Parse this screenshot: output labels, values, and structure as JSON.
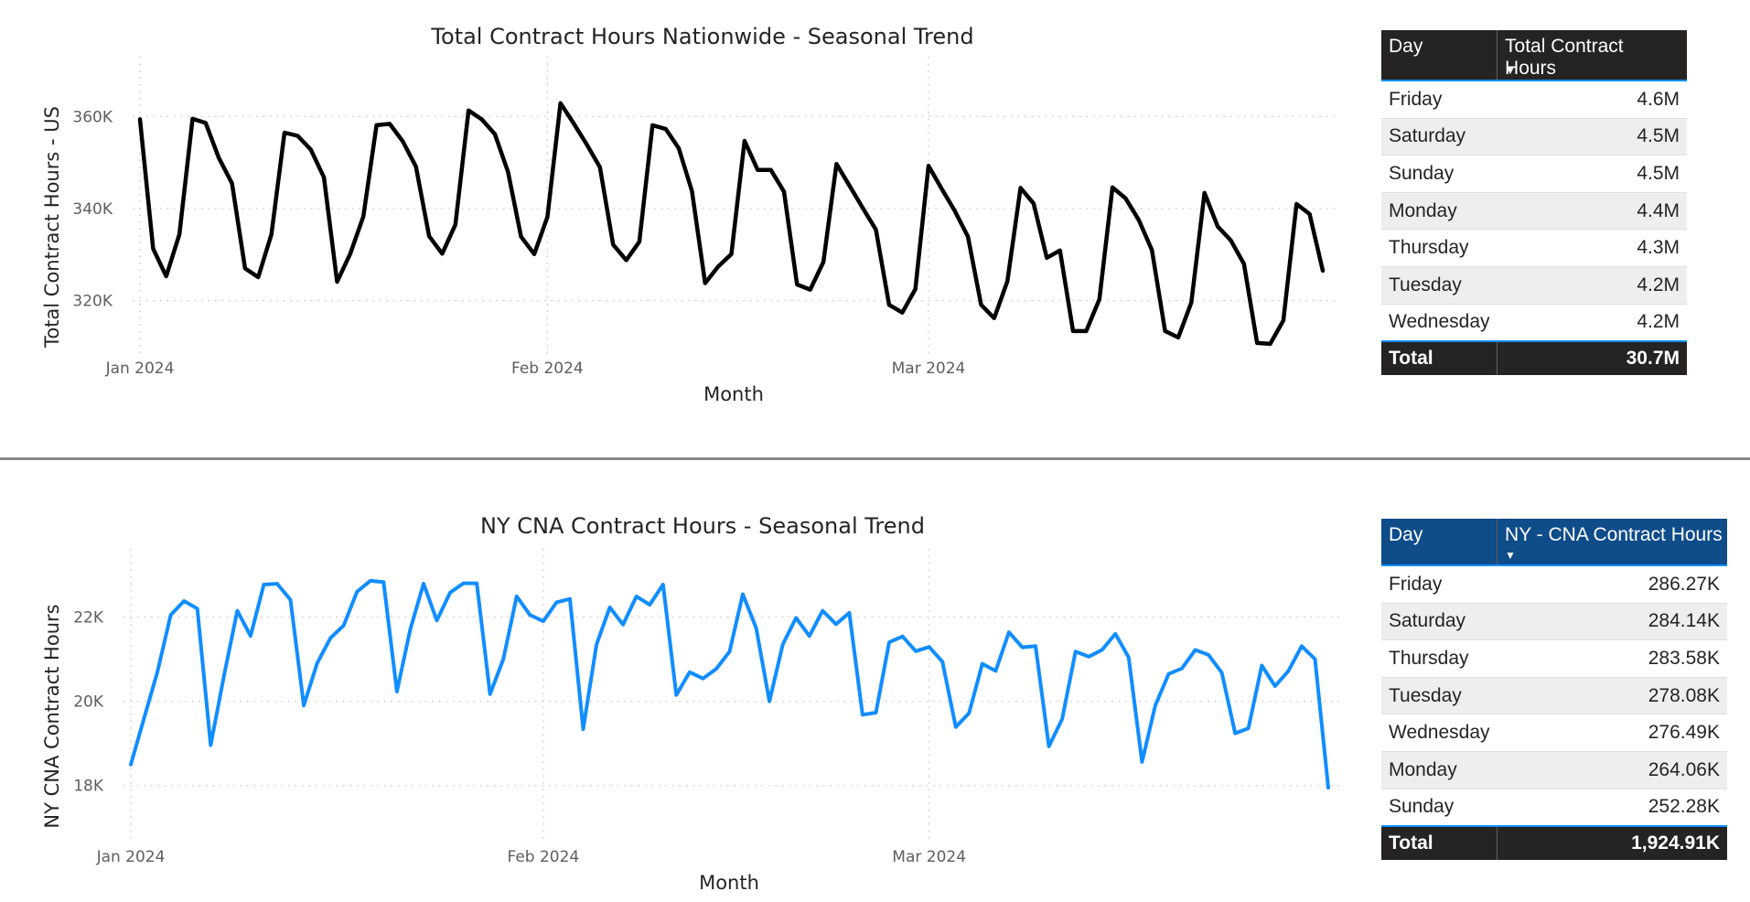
{
  "chart_data": [
    {
      "type": "line",
      "title": "Total Contract Hours Nationwide - Seasonal Trend",
      "xlabel": "Month",
      "ylabel": "Total Contract Hours - US",
      "x_ticks": [
        "Jan 2024",
        "Feb 2024",
        "Mar 2024"
      ],
      "y_ticks": [
        "320K",
        "340K",
        "360K"
      ],
      "x_start": "2024-01-01",
      "x_end": "2024-03-31",
      "ylim": [
        309000,
        371000
      ],
      "grid": true,
      "color": "#000000",
      "series": [
        {
          "values": [
            359400,
            331300,
            325300,
            334400,
            359500,
            358600,
            351000,
            345500,
            327000,
            325100,
            334400,
            356500,
            355800,
            352800,
            346800,
            324100,
            330200,
            338300,
            358100,
            358400,
            354600,
            349100,
            334000,
            330200,
            336500,
            361300,
            359400,
            356200,
            348000,
            333900,
            330100,
            338200,
            362900,
            358500,
            353900,
            349000,
            332200,
            328800,
            332800,
            358100,
            357300,
            353100,
            343800,
            323800,
            327400,
            330100,
            354700,
            348400,
            348400,
            343700,
            323500,
            322400,
            328400,
            349700,
            344900,
            340100,
            335400,
            319100,
            317400,
            322500,
            349300,
            344300,
            339500,
            333900,
            319100,
            316200,
            324200,
            344500,
            341100,
            329300,
            330900,
            313400,
            313400,
            320300,
            344600,
            342200,
            337500,
            331000,
            313400,
            312000,
            319600,
            343400,
            336100,
            333100,
            328000,
            310800,
            310600,
            315700,
            341000,
            338800,
            326500
          ]
        }
      ]
    },
    {
      "type": "line",
      "title": "NY CNA Contract Hours - Seasonal Trend",
      "xlabel": "Month",
      "ylabel": "NY CNA Contract Hours",
      "x_ticks": [
        "Jan 2024",
        "Feb 2024",
        "Mar 2024"
      ],
      "y_ticks": [
        "18K",
        "20K",
        "22K"
      ],
      "x_start": "2024-01-01",
      "x_end": "2024-03-31",
      "ylim": [
        16800,
        23400
      ],
      "grid": true,
      "color": "#118dff",
      "series": [
        {
          "values": [
            18500,
            19600,
            20700,
            22050,
            22380,
            22200,
            18960,
            20600,
            22150,
            21550,
            22770,
            22790,
            22410,
            19900,
            20900,
            21500,
            21800,
            22600,
            22860,
            22830,
            20230,
            21700,
            22790,
            21920,
            22580,
            22800,
            22800,
            20170,
            21000,
            22490,
            22050,
            21900,
            22350,
            22430,
            19340,
            21350,
            22230,
            21820,
            22490,
            22290,
            22770,
            20150,
            20690,
            20540,
            20770,
            21180,
            22540,
            21740,
            20000,
            21350,
            21980,
            21550,
            22150,
            21830,
            22100,
            19680,
            19730,
            21400,
            21540,
            21190,
            21290,
            20940,
            19390,
            19720,
            20890,
            20720,
            21640,
            21280,
            21310,
            18930,
            19580,
            21180,
            21060,
            21220,
            21600,
            21040,
            18560,
            19900,
            20650,
            20780,
            21220,
            21100,
            20680,
            19240,
            19360,
            20850,
            20360,
            20720,
            21310,
            21000,
            17950
          ]
        }
      ]
    }
  ],
  "table1": {
    "header_day": "Day",
    "header_value": "Total Contract Hours",
    "rows": [
      {
        "day": "Friday",
        "value": "4.6M"
      },
      {
        "day": "Saturday",
        "value": "4.5M"
      },
      {
        "day": "Sunday",
        "value": "4.5M"
      },
      {
        "day": "Monday",
        "value": "4.4M"
      },
      {
        "day": "Thursday",
        "value": "4.3M"
      },
      {
        "day": "Tuesday",
        "value": "4.2M"
      },
      {
        "day": "Wednesday",
        "value": "4.2M"
      }
    ],
    "total_label": "Total",
    "total_value": "30.7M",
    "header_color": "#252423"
  },
  "table2": {
    "header_day": "Day",
    "header_value": "NY - CNA Contract Hours",
    "rows": [
      {
        "day": "Friday",
        "value": "286.27K"
      },
      {
        "day": "Saturday",
        "value": "284.14K"
      },
      {
        "day": "Thursday",
        "value": "283.58K"
      },
      {
        "day": "Tuesday",
        "value": "278.08K"
      },
      {
        "day": "Wednesday",
        "value": "276.49K"
      },
      {
        "day": "Monday",
        "value": "264.06K"
      },
      {
        "day": "Sunday",
        "value": "252.28K"
      }
    ],
    "total_label": "Total",
    "total_value": "1,924.91K",
    "header_color": "#0f4c8a"
  }
}
